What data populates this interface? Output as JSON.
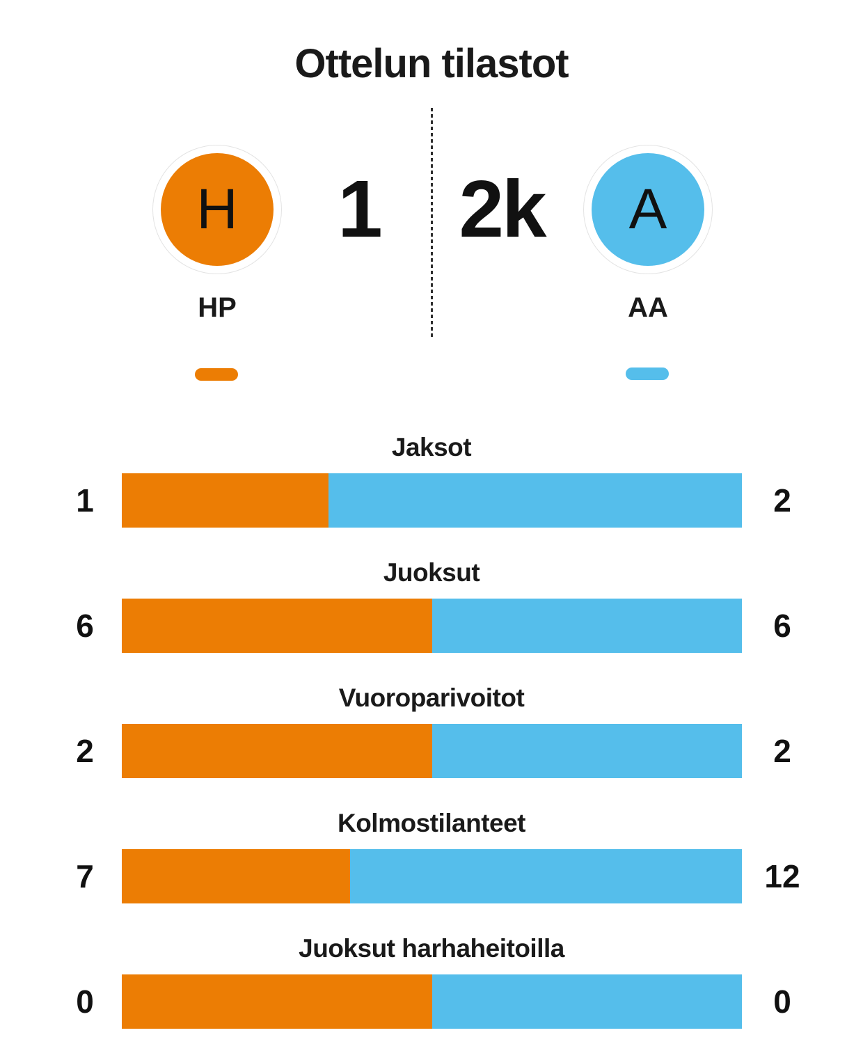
{
  "title": "Ottelun tilastot",
  "teams": {
    "home": {
      "initial": "H",
      "name": "HP",
      "color": "#ec7d04"
    },
    "away": {
      "initial": "A",
      "name": "AA",
      "color": "#55beeb"
    }
  },
  "score": {
    "home": "1",
    "away": "2k"
  },
  "stats": [
    {
      "label": "Jaksot",
      "home": "1",
      "away": "2"
    },
    {
      "label": "Juoksut",
      "home": "6",
      "away": "6"
    },
    {
      "label": "Vuoroparivoitot",
      "home": "2",
      "away": "2"
    },
    {
      "label": "Kolmostilanteet",
      "home": "7",
      "away": "12"
    },
    {
      "label": "Juoksut harhaheitoilla",
      "home": "0",
      "away": "0"
    }
  ],
  "chart_data": {
    "type": "bar",
    "orientation": "horizontal-stacked-share",
    "title": "Ottelun tilastot",
    "categories": [
      "Jaksot",
      "Juoksut",
      "Vuoroparivoitot",
      "Kolmostilanteet",
      "Juoksut harhaheitoilla"
    ],
    "series": [
      {
        "name": "HP",
        "color": "#ec7d04",
        "values": [
          1,
          6,
          2,
          7,
          0
        ]
      },
      {
        "name": "AA",
        "color": "#55beeb",
        "values": [
          2,
          6,
          2,
          12,
          0
        ]
      }
    ],
    "legend_position": "top",
    "grid": false,
    "note": "each bar shows home share vs away share of category total; equal split when both values are 0"
  }
}
